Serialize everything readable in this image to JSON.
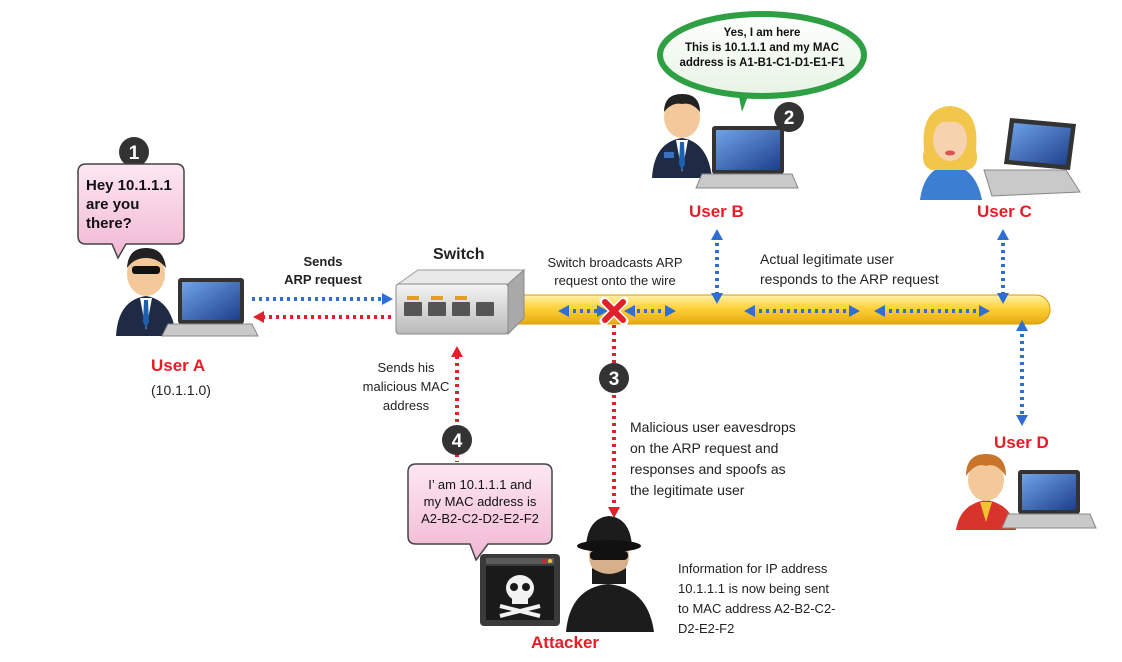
{
  "steps": [
    "1",
    "2",
    "3",
    "4"
  ],
  "switch": {
    "label": "Switch"
  },
  "users": {
    "a": {
      "label": "User A",
      "ip": "(10.1.1.0)"
    },
    "b": {
      "label": "User B"
    },
    "c": {
      "label": "User C"
    },
    "d": {
      "label": "User D"
    },
    "attacker": {
      "label": "Attacker"
    }
  },
  "bubbles": {
    "user_a": [
      "Hey 10.1.1.1",
      "are you",
      "there?"
    ],
    "user_b": [
      "Yes, I am here",
      "This is 10.1.1.1 and my MAC",
      "address is A1-B1-C1-D1-E1-F1"
    ],
    "attacker": [
      "I’ am 10.1.1.1 and",
      "my MAC address is",
      "A2-B2-C2-D2-E2-F2"
    ]
  },
  "annotations": {
    "sends_arp": [
      "Sends",
      "ARP request"
    ],
    "broadcast": [
      "Switch broadcasts ARP",
      "request onto the wire"
    ],
    "legit": [
      "Actual legitimate user",
      "responds to the ARP request"
    ],
    "malicious_mac": [
      "Sends his",
      "malicious MAC",
      "address"
    ],
    "eavesdrop": [
      "Malicious user eavesdrops",
      "on the ARP request and",
      "responses and spoofs as",
      "the legitimate user"
    ],
    "info": [
      "Information for IP address",
      "10.1.1.1 is now being sent",
      "to MAC address A2-B2-C2-",
      "D2-E2-F2"
    ]
  },
  "colors": {
    "accent_red": "#e51d26",
    "arrow_blue": "#2f6fd1",
    "arrow_red": "#e0202a",
    "wire_yellow": "#ffd23a",
    "bubble_pink": "#f6c9e0",
    "bubble_green": "#2ea043"
  },
  "icons": [
    "user-a-avatar-icon",
    "user-b-avatar-icon",
    "user-c-avatar-icon",
    "user-d-avatar-icon",
    "attacker-avatar-icon",
    "laptop-icon",
    "skull-screen-icon",
    "switch-device-icon",
    "intercept-x-icon"
  ]
}
